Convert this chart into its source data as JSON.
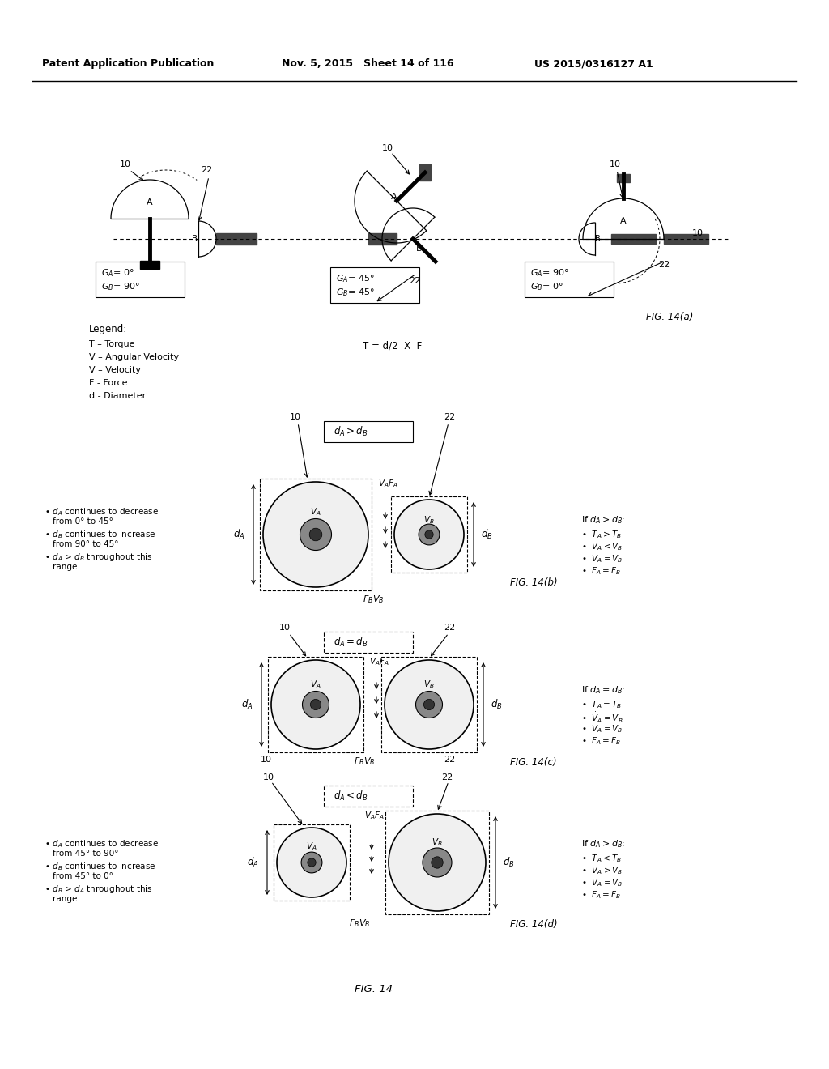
{
  "header_left": "Patent Application Publication",
  "header_mid": "Nov. 5, 2015   Sheet 14 of 116",
  "header_right": "US 2015/0316127 A1",
  "bg_color": "#ffffff",
  "fig_label_bottom": "FIG. 14"
}
